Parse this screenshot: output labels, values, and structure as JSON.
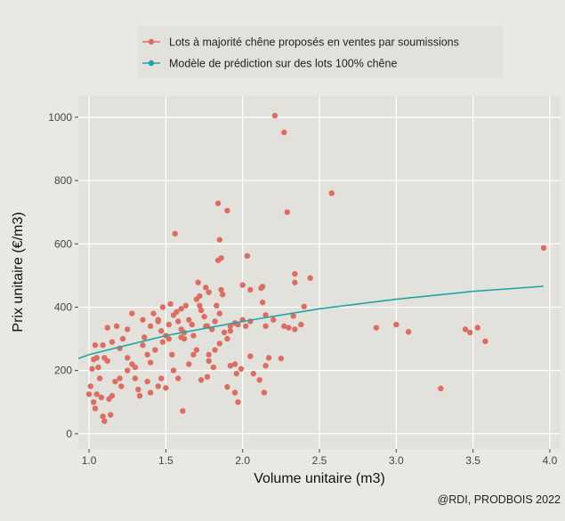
{
  "chart_data": {
    "type": "scatter",
    "x_label": "Volume unitaire (m3)",
    "y_label": "Prix unitaire (€/m3)",
    "caption": "@RDI, PRODBOIS 2022",
    "legend": "top",
    "grid": true,
    "xlim": [
      0.93,
      4.07
    ],
    "ylim": [
      -48,
      1067
    ],
    "xticks": [
      {
        "value": 1,
        "label": "1.0"
      },
      1.5,
      {
        "value": 2,
        "label": "2.0"
      },
      2.5,
      {
        "value": 3,
        "label": "3.0"
      },
      3.5,
      {
        "value": 4,
        "label": "4.0"
      }
    ],
    "yticks": [
      0,
      200,
      400,
      600,
      800,
      1000
    ],
    "series": [
      {
        "name": "Lots à majorité chêne proposés en ventes par soumissions",
        "color": "#dc6d63",
        "kind": "points",
        "x": [
          2.21,
          2.27,
          2.29,
          2.58,
          1.84,
          1.9,
          1.56,
          1.85,
          3.96,
          2.03,
          1.86,
          1.84,
          2.44,
          2.34,
          2.34,
          2.12,
          2.13,
          2.0,
          2.05,
          1.71,
          1.76,
          1.78,
          1.86,
          2.4,
          2.2,
          2.15,
          2.33,
          2.27,
          2.3,
          2.34,
          2.38,
          2.87,
          3.0,
          3.08,
          3.45,
          3.48,
          3.53,
          3.58,
          3.29,
          2.25,
          2.17,
          2.05,
          2.15,
          2.07,
          2.11,
          2.14,
          1.97,
          1.95,
          1.9,
          1.96,
          1.92,
          1.95,
          1.99,
          1.81,
          1.78,
          1.78,
          1.77,
          1.73,
          1.65,
          1.68,
          1.7,
          1.62,
          1.6,
          1.61,
          1.58,
          1.55,
          1.54,
          1.5,
          1.47,
          1.45,
          1.4,
          1.38,
          1.33,
          1.32,
          1.3,
          1.25,
          1.21,
          1.2,
          1.17,
          1.15,
          1.13,
          1.1,
          1.09,
          1.14,
          1.08,
          1.05,
          1.03,
          1.04,
          1.0,
          1.01,
          1.02,
          1.03,
          1.05,
          1.06,
          1.07,
          1.09,
          1.04,
          1.1,
          1.12,
          1.12,
          1.18,
          1.22,
          1.25,
          1.28,
          1.25,
          1.28,
          1.3,
          1.35,
          1.36,
          1.38,
          1.4,
          1.42,
          1.45,
          1.47,
          1.48,
          1.5,
          1.52,
          1.53,
          1.55,
          1.57,
          1.58,
          1.6,
          1.62,
          1.63,
          1.65,
          1.67,
          1.68,
          1.7,
          1.72,
          1.73,
          1.75,
          1.77,
          1.8,
          1.82,
          1.83,
          1.85,
          1.87,
          1.88,
          1.9,
          1.92,
          1.95,
          1.97,
          2.0,
          2.02,
          2.05,
          2.13,
          2.15,
          1.6,
          1.52,
          1.43,
          1.35,
          1.2,
          1.15,
          1.48,
          1.45,
          1.4,
          1.72,
          1.76,
          1.92,
          1.85,
          1.82
        ],
        "values": [
          1005,
          952,
          700,
          760,
          728,
          705,
          632,
          613,
          587,
          562,
          555,
          548,
          492,
          505,
          478,
          460,
          465,
          470,
          455,
          478,
          462,
          447,
          455,
          402,
          360,
          375,
          372,
          340,
          335,
          330,
          345,
          335,
          345,
          322,
          330,
          320,
          335,
          292,
          143,
          238,
          240,
          245,
          215,
          190,
          170,
          130,
          100,
          130,
          148,
          190,
          215,
          220,
          205,
          210,
          250,
          230,
          180,
          170,
          220,
          250,
          265,
          300,
          305,
          72,
          175,
          200,
          250,
          145,
          175,
          150,
          130,
          165,
          120,
          140,
          175,
          200,
          150,
          175,
          165,
          120,
          110,
          40,
          55,
          60,
          115,
          125,
          100,
          80,
          125,
          150,
          205,
          235,
          240,
          210,
          175,
          280,
          280,
          240,
          230,
          335,
          340,
          300,
          330,
          380,
          240,
          220,
          210,
          360,
          305,
          250,
          225,
          380,
          355,
          325,
          290,
          310,
          345,
          410,
          375,
          385,
          355,
          330,
          320,
          405,
          360,
          345,
          310,
          425,
          435,
          390,
          370,
          340,
          330,
          355,
          405,
          380,
          440,
          320,
          300,
          340,
          350,
          345,
          360,
          340,
          355,
          415,
          340,
          395,
          300,
          265,
          280,
          270,
          290,
          400,
          360,
          340,
          405,
          340,
          325,
          285,
          265
        ]
      },
      {
        "name": "Modèle de prédiction sur des lots 100% chêne",
        "color": "#1fa6a3",
        "kind": "line",
        "x": [
          0.93,
          1.0,
          1.5,
          2.0,
          2.5,
          3.0,
          3.5,
          3.96
        ],
        "values": [
          238,
          250,
          310,
          355,
          395,
          425,
          450,
          466
        ]
      }
    ]
  }
}
